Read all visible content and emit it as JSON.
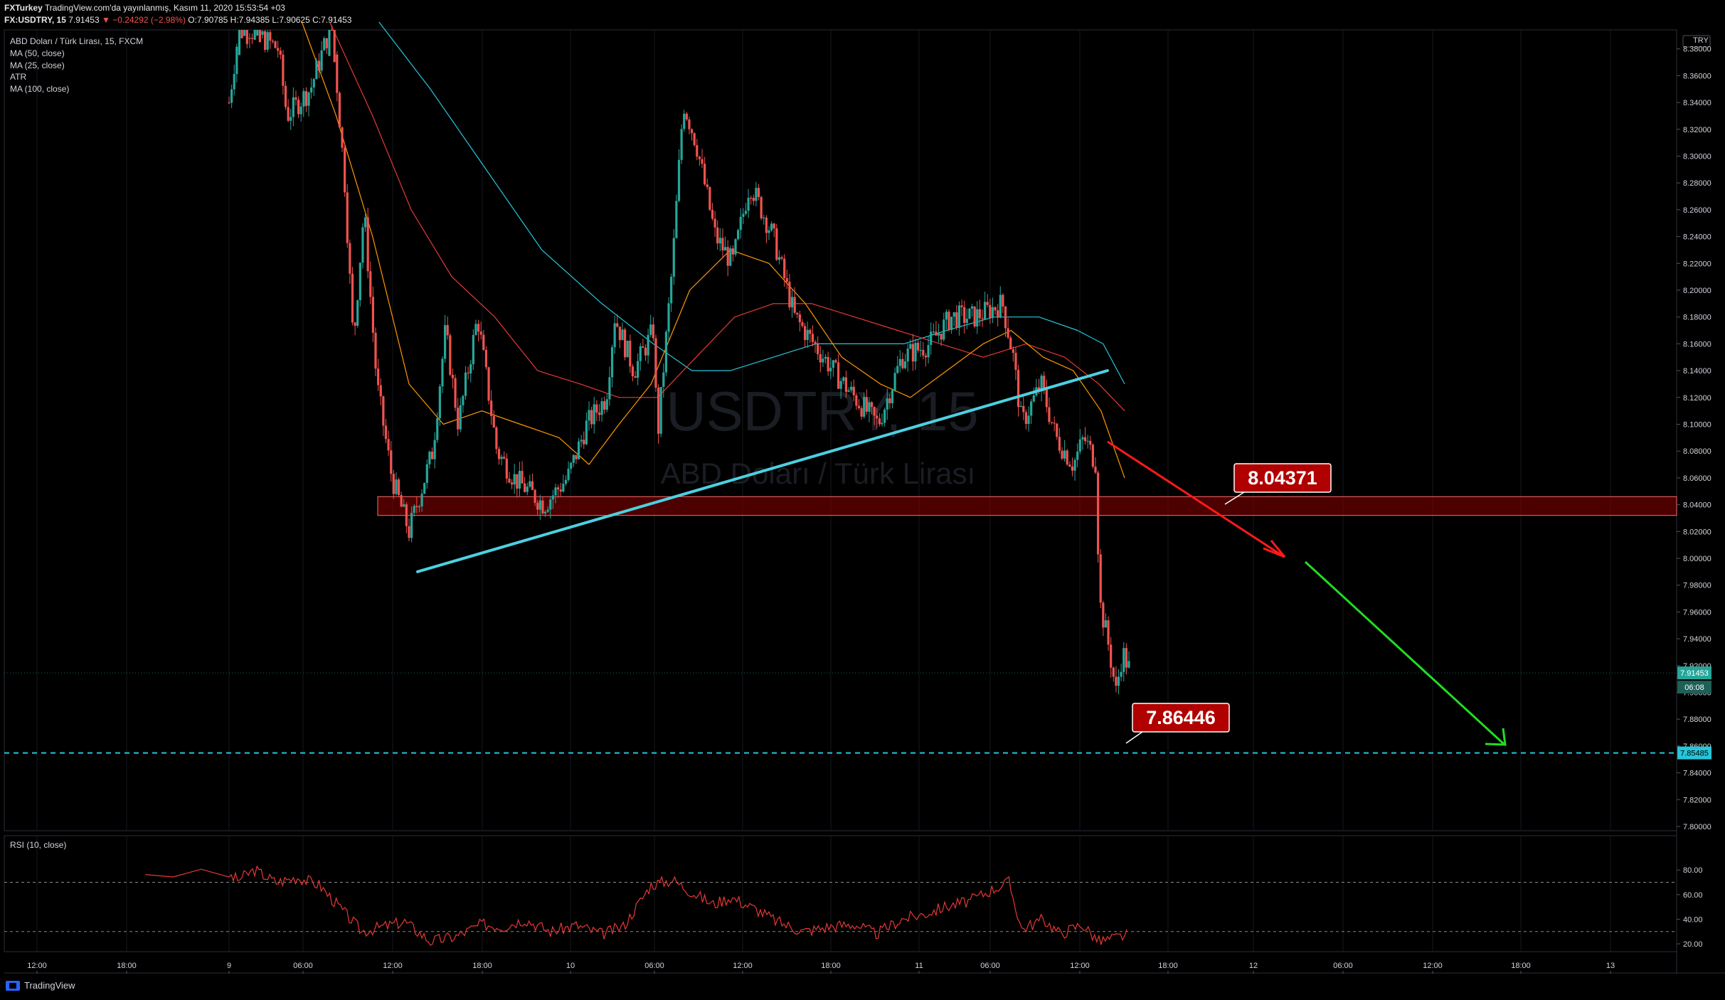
{
  "header": {
    "line1_prefix": "FXTurkey",
    "line1_rest": " TradingView.com'da yayınlanmış, Kasım 11, 2020 15:53:54 +03",
    "symbol": "FX:USDTRY, 15",
    "last": "7.91453",
    "change": "▼ −0.24292 (−2.98%)",
    "ohlc": "O:7.90785 H:7.94385 L:7.90625 C:7.91453"
  },
  "legend": {
    "title": "ABD Doları / Türk Lirası, 15, FXCM",
    "items": [
      "MA (50, close)",
      "MA (25, close)",
      "ATR",
      "MA (100, close)"
    ]
  },
  "watermark": {
    "symbol": "USDTRY, 15",
    "name": "ABD Doları / Türk Lirası"
  },
  "rsi": {
    "label": "RSI (10, close)"
  },
  "footer": {
    "brand": "TradingView"
  },
  "colors": {
    "up": "#26a69a",
    "down": "#ef5350",
    "ma25": "#ff9800",
    "ma50": "#e53935",
    "ma100": "#26c6da",
    "trendline": "#4dd0e1",
    "zone": "#8b0000",
    "arrow_red": "#ff1a1a",
    "arrow_green": "#22dd22",
    "rsi_line": "#e53935"
  },
  "chart_data": {
    "type": "candlestick",
    "title": "ABD Doları / Türk Lirası, 15, FXCM",
    "currency": "TRY",
    "ylim": [
      7.79,
      8.4
    ],
    "price_ticks": [
      "8.38000",
      "8.36000",
      "8.34000",
      "8.32000",
      "8.30000",
      "8.28000",
      "8.26000",
      "8.24000",
      "8.22000",
      "8.20000",
      "8.18000",
      "8.16000",
      "8.14000",
      "8.12000",
      "8.10000",
      "8.08000",
      "8.06000",
      "8.04000",
      "8.02000",
      "8.00000",
      "7.98000",
      "7.96000",
      "7.94000",
      "7.92000",
      "7.90000",
      "7.88000",
      "7.86000",
      "7.84000",
      "7.82000",
      "7.80000"
    ],
    "time_ticks": [
      "12:00",
      "18:00",
      "9",
      "06:00",
      "12:00",
      "18:00",
      "10",
      "06:00",
      "12:00",
      "18:00",
      "11",
      "06:00",
      "12:00",
      "18:00",
      "12",
      "06:00",
      "12:00",
      "18:00",
      "13"
    ],
    "price_path": [
      [
        0.8,
        8.34
      ],
      [
        1.3,
        8.4
      ],
      [
        3.1,
        8.38
      ],
      [
        3.5,
        8.33
      ],
      [
        4.6,
        8.35
      ],
      [
        5.6,
        8.4
      ],
      [
        6.2,
        8.28
      ],
      [
        6.6,
        8.16
      ],
      [
        7.1,
        8.26
      ],
      [
        7.7,
        8.13
      ],
      [
        8.4,
        8.06
      ],
      [
        9.2,
        8.02
      ],
      [
        10.3,
        8.08
      ],
      [
        10.9,
        8.17
      ],
      [
        11.5,
        8.1
      ],
      [
        12.4,
        8.18
      ],
      [
        13.3,
        8.08
      ],
      [
        14.1,
        8.06
      ],
      [
        15.5,
        8.04
      ],
      [
        16.6,
        8.06
      ],
      [
        17.5,
        8.1
      ],
      [
        18.4,
        8.12
      ],
      [
        18.8,
        8.18
      ],
      [
        19.7,
        8.14
      ],
      [
        20.6,
        8.17
      ],
      [
        20.8,
        8.09
      ],
      [
        21.5,
        8.22
      ],
      [
        22.0,
        8.34
      ],
      [
        22.6,
        8.31
      ],
      [
        23.5,
        8.24
      ],
      [
        24.3,
        8.22
      ],
      [
        25.1,
        8.28
      ],
      [
        26.2,
        8.24
      ],
      [
        27.2,
        8.18
      ],
      [
        28.1,
        8.16
      ],
      [
        29.0,
        8.14
      ],
      [
        30.0,
        8.12
      ],
      [
        31.1,
        8.1
      ],
      [
        32.2,
        8.15
      ],
      [
        33.5,
        8.16
      ],
      [
        34.5,
        8.18
      ],
      [
        35.6,
        8.18
      ],
      [
        36.9,
        8.19
      ],
      [
        37.4,
        8.15
      ],
      [
        37.8,
        8.1
      ],
      [
        38.7,
        8.13
      ],
      [
        39.4,
        8.09
      ],
      [
        40.2,
        8.07
      ],
      [
        40.7,
        8.09
      ],
      [
        41.3,
        8.07
      ],
      [
        41.4,
        7.97
      ],
      [
        41.8,
        7.94
      ],
      [
        42.2,
        7.9
      ],
      [
        42.5,
        7.93
      ],
      [
        42.9,
        7.9145
      ]
    ],
    "ma25": [
      [
        4.2,
        8.4
      ],
      [
        5.8,
        8.33
      ],
      [
        7.5,
        8.24
      ],
      [
        9.2,
        8.13
      ],
      [
        10.8,
        8.1
      ],
      [
        12.6,
        8.11
      ],
      [
        14.4,
        8.1
      ],
      [
        16.2,
        8.09
      ],
      [
        17.6,
        8.07
      ],
      [
        19.0,
        8.1
      ],
      [
        20.5,
        8.13
      ],
      [
        22.3,
        8.2
      ],
      [
        24.2,
        8.23
      ],
      [
        26.0,
        8.22
      ],
      [
        27.7,
        8.19
      ],
      [
        29.4,
        8.15
      ],
      [
        31.2,
        8.13
      ],
      [
        32.6,
        8.12
      ],
      [
        34.3,
        8.14
      ],
      [
        36.0,
        8.16
      ],
      [
        37.3,
        8.17
      ],
      [
        38.8,
        8.15
      ],
      [
        40.2,
        8.14
      ],
      [
        41.5,
        8.11
      ],
      [
        42.6,
        8.06
      ]
    ],
    "ma50": [
      [
        5.5,
        8.4
      ],
      [
        7.5,
        8.33
      ],
      [
        9.3,
        8.26
      ],
      [
        11.2,
        8.21
      ],
      [
        13.2,
        8.18
      ],
      [
        15.2,
        8.14
      ],
      [
        17.2,
        8.13
      ],
      [
        19.0,
        8.12
      ],
      [
        20.8,
        8.12
      ],
      [
        22.6,
        8.15
      ],
      [
        24.4,
        8.18
      ],
      [
        26.2,
        8.19
      ],
      [
        28.0,
        8.19
      ],
      [
        30.0,
        8.18
      ],
      [
        32.0,
        8.17
      ],
      [
        34.0,
        8.16
      ],
      [
        36.0,
        8.15
      ],
      [
        38.0,
        8.16
      ],
      [
        39.8,
        8.15
      ],
      [
        41.4,
        8.13
      ],
      [
        42.6,
        8.11
      ]
    ],
    "ma100": [
      [
        7.8,
        8.4
      ],
      [
        10.2,
        8.35
      ],
      [
        12.8,
        8.29
      ],
      [
        15.4,
        8.23
      ],
      [
        18.2,
        8.19
      ],
      [
        20.6,
        8.16
      ],
      [
        22.4,
        8.14
      ],
      [
        24.2,
        8.14
      ],
      [
        26.2,
        8.15
      ],
      [
        28.2,
        8.16
      ],
      [
        30.2,
        8.16
      ],
      [
        32.3,
        8.16
      ],
      [
        34.3,
        8.17
      ],
      [
        36.5,
        8.18
      ],
      [
        38.6,
        8.18
      ],
      [
        40.4,
        8.17
      ],
      [
        41.6,
        8.16
      ],
      [
        42.6,
        8.13
      ]
    ],
    "trendline": [
      [
        9.6,
        7.99
      ],
      [
        41.8,
        8.14
      ]
    ],
    "zone": [
      8.032,
      8.046
    ],
    "annotations": [
      {
        "label": "8.04371",
        "value": 8.04371
      },
      {
        "label": "7.86446",
        "value": 7.86446
      }
    ],
    "support_level": "7.85485",
    "last_price": "7.91453",
    "countdown": "06:08",
    "rsi_ticks": [
      "80.00",
      "60.00",
      "40.00",
      "20.00"
    ],
    "rsi_levels": [
      70,
      30
    ],
    "rsi_path": [
      [
        0.5,
        78
      ],
      [
        1.2,
        72
      ],
      [
        2.0,
        80
      ],
      [
        3.0,
        70
      ],
      [
        4.0,
        74
      ],
      [
        5.0,
        68
      ],
      [
        6.2,
        45
      ],
      [
        7.0,
        30
      ],
      [
        8.0,
        34
      ],
      [
        9.0,
        38
      ],
      [
        10.2,
        22
      ],
      [
        11.4,
        26
      ],
      [
        12.6,
        36
      ],
      [
        13.6,
        34
      ],
      [
        14.6,
        40
      ],
      [
        15.8,
        30
      ],
      [
        17.0,
        35
      ],
      [
        18.2,
        28
      ],
      [
        19.2,
        34
      ],
      [
        20.5,
        68
      ],
      [
        21.5,
        72
      ],
      [
        22.4,
        62
      ],
      [
        23.4,
        52
      ],
      [
        24.2,
        58
      ],
      [
        25.4,
        48
      ],
      [
        26.4,
        38
      ],
      [
        27.6,
        30
      ],
      [
        28.8,
        34
      ],
      [
        30.0,
        36
      ],
      [
        31.0,
        28
      ],
      [
        32.2,
        40
      ],
      [
        33.2,
        44
      ],
      [
        34.2,
        50
      ],
      [
        35.4,
        55
      ],
      [
        36.4,
        64
      ],
      [
        37.2,
        70
      ],
      [
        37.8,
        32
      ],
      [
        38.8,
        40
      ],
      [
        39.6,
        28
      ],
      [
        40.6,
        36
      ],
      [
        41.4,
        22
      ],
      [
        42.0,
        24
      ],
      [
        42.8,
        28
      ]
    ]
  }
}
